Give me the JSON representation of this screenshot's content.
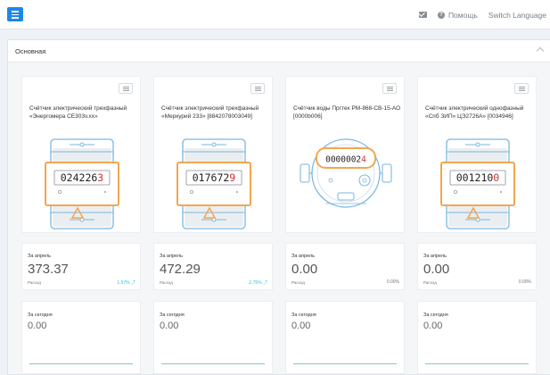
{
  "header": {
    "help_label": "Помощь",
    "language_label": "Switch Language",
    "accent_color": "#1e88e5"
  },
  "panel": {
    "title": "Основная"
  },
  "meters": [
    {
      "name": "Счётчик электрический трехфазный «Энергомера СЕ303v.хх»",
      "type": "electric",
      "digits_black": "024226",
      "digits_red": "3"
    },
    {
      "name": "Счётчик электрический трехфазный «Меркурий 233» [8842078003049]",
      "type": "electric",
      "digits_black": "017672",
      "digits_red": "9"
    },
    {
      "name": "Счётчик воды Пргтех РМ-868-СВ-15-АО [0000b006]",
      "type": "water",
      "digits_black": "0000002",
      "digits_red": "4"
    },
    {
      "name": "Счётчик электрический однофазный «Спб ЗИП» ЦЭ2726А» [0034946]",
      "type": "electric",
      "digits_black": "001210",
      "digits_red": "0"
    }
  ],
  "stats": [
    {
      "period": "За апрель",
      "value": "373.37",
      "label": "Расход",
      "percent": "1.57% ⤴",
      "trend": "up"
    },
    {
      "period": "За апрель",
      "value": "472.29",
      "label": "Расход",
      "percent": "2.75% ⤴",
      "trend": "up"
    },
    {
      "period": "За апрель",
      "value": "0.00",
      "label": "Расход",
      "percent": "0.00%",
      "trend": "flat"
    },
    {
      "period": "За апрель",
      "value": "0.00",
      "label": "Расход",
      "percent": "0.00%",
      "trend": "flat"
    }
  ],
  "today": [
    {
      "period": "За сегодня",
      "value": "0.00"
    },
    {
      "period": "За сегодня",
      "value": "0.00"
    },
    {
      "period": "За сегодня",
      "value": "0.00"
    },
    {
      "period": "За сегодня",
      "value": "0.00"
    }
  ]
}
